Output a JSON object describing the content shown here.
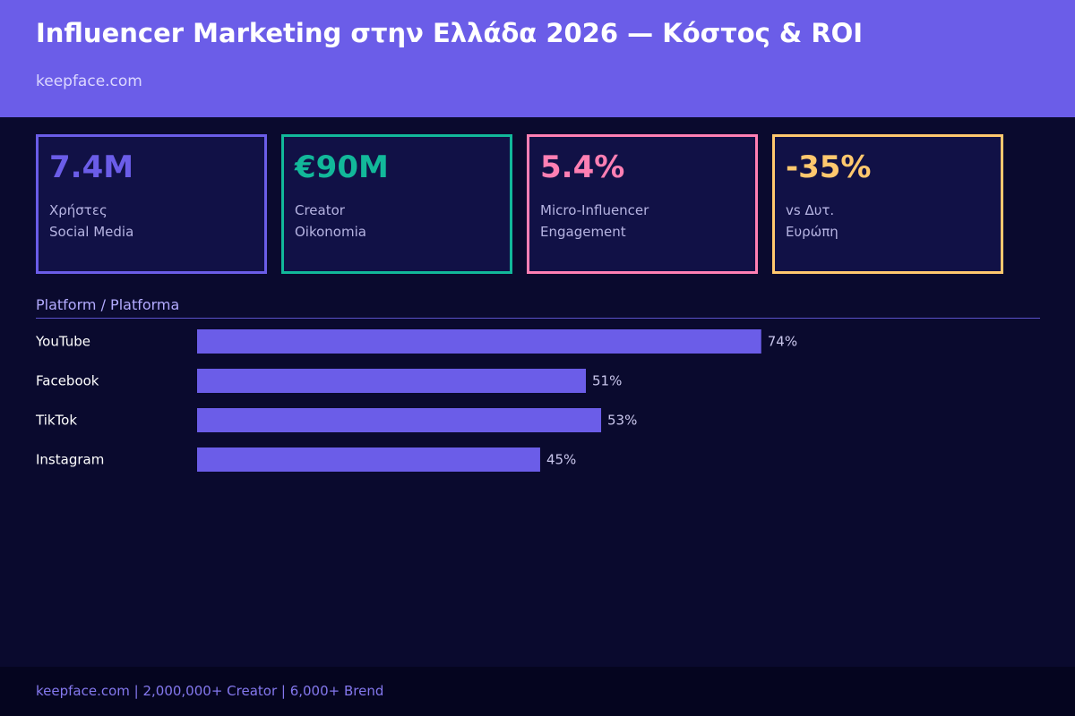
{
  "header": {
    "title": "Influencer Marketing στην Ελλάδα 2026 — Κόστος & ROI",
    "subtitle": "keepface.com"
  },
  "stats": [
    {
      "value": "7.4M",
      "line1": "Χρήστες",
      "line2": "Social Media",
      "color": "#6b5de8"
    },
    {
      "value": "€90M",
      "line1": "Creator",
      "line2": "Oikonomia",
      "color": "#12b89a"
    },
    {
      "value": "5.4%",
      "line1": "Micro-Influencer",
      "line2": "Engagement",
      "color": "#ff7fb3"
    },
    {
      "value": "-35%",
      "line1": "vs Δυτ.",
      "line2": "Ευρώπη",
      "color": "#ffc86e"
    }
  ],
  "section": {
    "title": "Platform / Platforma"
  },
  "chart_data": {
    "type": "bar",
    "orientation": "horizontal",
    "categories": [
      "YouTube",
      "Facebook",
      "TikTok",
      "Instagram"
    ],
    "values": [
      74,
      51,
      53,
      45
    ],
    "value_labels": [
      "74%",
      "51%",
      "53%",
      "45%"
    ],
    "title": "Platform / Platforma",
    "xlim": [
      0,
      100
    ],
    "grid": false,
    "bar_color": "#6b5de8"
  },
  "footer": {
    "text": "keepface.com  |  2,000,000+ Creator  |  6,000+ Brend"
  }
}
